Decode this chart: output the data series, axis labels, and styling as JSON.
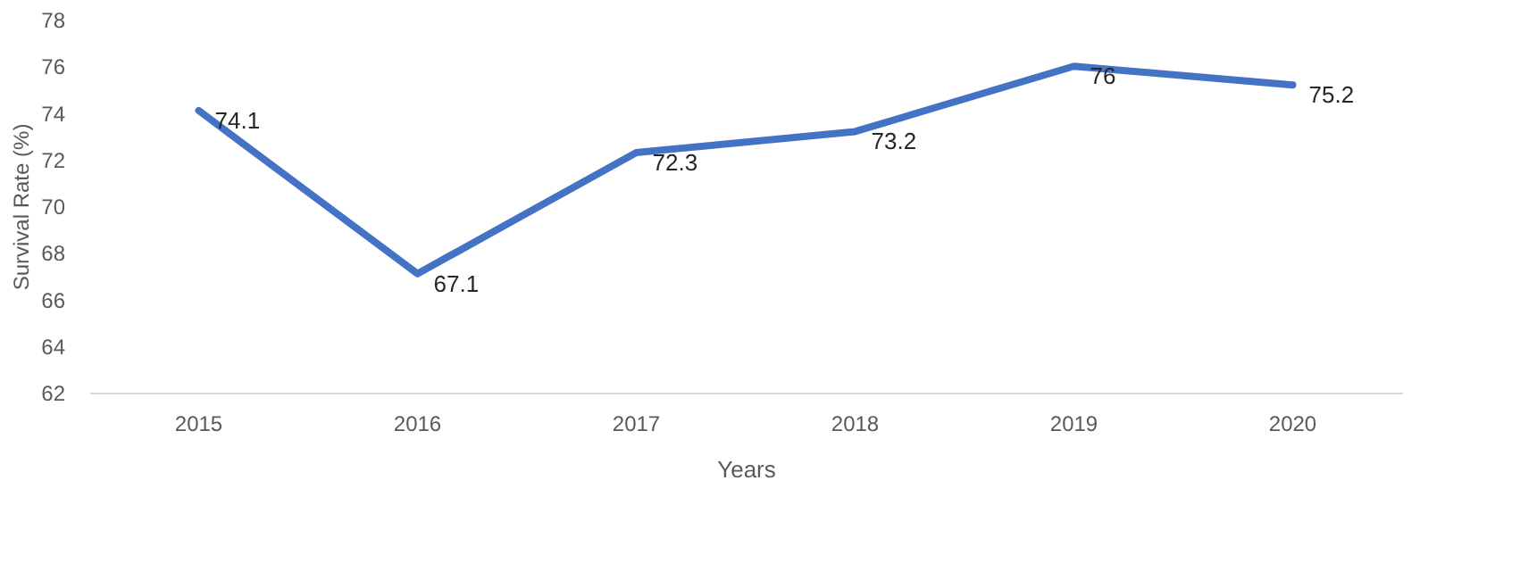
{
  "chart_data": {
    "type": "line",
    "xlabel": "Years",
    "ylabel": "Survival Rate (%)",
    "categories": [
      "2015",
      "2016",
      "2017",
      "2018",
      "2019",
      "2020"
    ],
    "series": [
      {
        "color": "#4472c4",
        "values": [
          74.1,
          67.1,
          72.3,
          73.2,
          76,
          75.2
        ]
      }
    ],
    "ylim": [
      62,
      78
    ],
    "yticks": [
      62,
      64,
      66,
      68,
      70,
      72,
      74,
      76,
      78
    ],
    "data_labels": true
  }
}
